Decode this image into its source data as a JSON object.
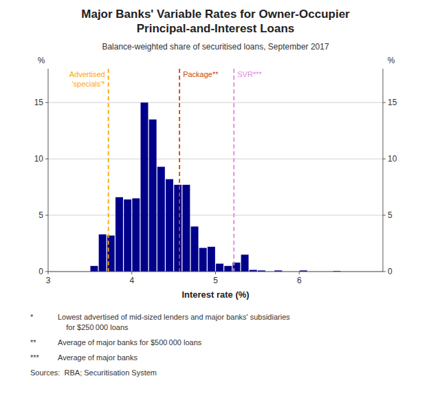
{
  "chart_data": {
    "type": "bar",
    "title": "Major Banks' Variable Rates for Owner-Occupier\nPrincipal-and-Interest Loans",
    "subtitle": "Balance-weighted share of securitised loans, September 2017",
    "xlabel": "Interest rate (%)",
    "ylabel": "%",
    "y2label": "%",
    "color": "#00008B",
    "x": [
      3.55,
      3.65,
      3.75,
      3.85,
      3.95,
      4.05,
      4.15,
      4.25,
      4.35,
      4.45,
      4.55,
      4.65,
      4.75,
      4.85,
      4.95,
      5.05,
      5.15,
      5.25,
      5.35,
      5.45,
      5.55,
      5.75,
      6.05,
      6.45
    ],
    "values": [
      0.5,
      3.3,
      3.2,
      6.6,
      6.4,
      6.5,
      15.0,
      13.5,
      9.3,
      8.2,
      7.7,
      7.7,
      4.0,
      2.1,
      2.2,
      0.7,
      0.5,
      0.8,
      1.5,
      0.15,
      0.1,
      0.1,
      0.1,
      0.05
    ],
    "xlim": [
      3.0,
      7.0
    ],
    "xticks": [
      3,
      4,
      5,
      6
    ],
    "ylim": [
      0,
      18
    ],
    "yticks": [
      0,
      5,
      10,
      15
    ],
    "y2lim": [
      0,
      18
    ],
    "y2ticks": [
      0,
      5,
      10,
      15
    ],
    "grid": true,
    "annotations": [
      {
        "text": "Advertised\n'specials'*",
        "x": 3.72,
        "color": "#FFA500"
      },
      {
        "text": "Package**",
        "x": 4.57,
        "color": "#CC4400"
      },
      {
        "text": "SVR***",
        "x": 5.22,
        "color": "#DD88DD"
      }
    ],
    "notes": [
      {
        "marker": "*",
        "text": "Lowest advertised of mid-sized lenders and major banks' subsidiaries\n    for $250 000 loans"
      },
      {
        "marker": "**",
        "text": "Average of major banks for $500 000 loans"
      },
      {
        "marker": "***",
        "text": "Average of major banks"
      },
      {
        "marker": null,
        "text": "Sources:  RBA; Securitisation System"
      }
    ]
  }
}
